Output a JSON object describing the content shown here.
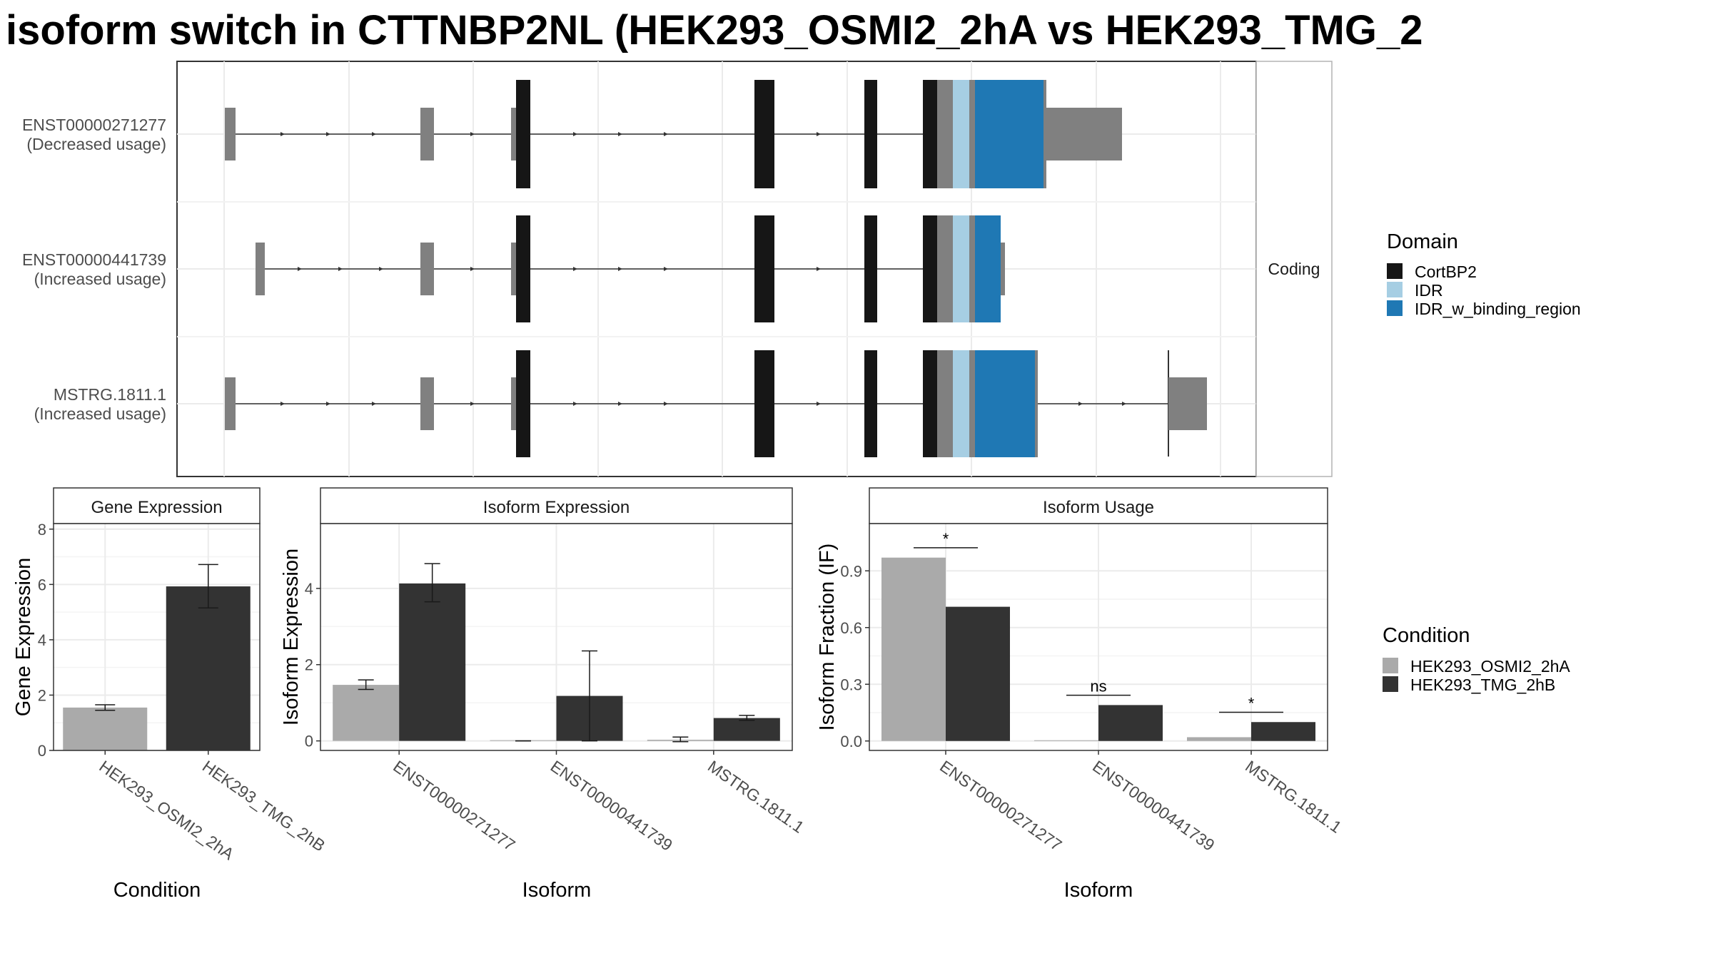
{
  "title": "isoform switch in CTTNBP2NL (HEK293_OSMI2_2hA vs HEK293_TMG_2",
  "colors": {
    "CortBP2": "#161616",
    "IDR": "#a6cee3",
    "IDR_w_binding_region": "#1f78b4",
    "noncoding": "#808080",
    "HEK293_OSMI2_2hA": "#aaaaaa",
    "HEK293_TMG_2hB": "#333333"
  },
  "structure": {
    "facet_label": "Coding",
    "transcripts": [
      {
        "id": "ENST00000271277",
        "usage": "(Decreased usage)"
      },
      {
        "id": "ENST00000441739",
        "usage": "(Increased usage)"
      },
      {
        "id": "MSTRG.1811.1",
        "usage": "(Increased usage)"
      }
    ]
  },
  "domain_legend": {
    "title": "Domain",
    "items": [
      "CortBP2",
      "IDR",
      "IDR_w_binding_region"
    ]
  },
  "condition_legend": {
    "title": "Condition",
    "items": [
      "HEK293_OSMI2_2hA",
      "HEK293_TMG_2hB"
    ]
  },
  "chart_data": [
    {
      "type": "bar",
      "title": "Gene Expression",
      "xlabel": "Condition",
      "ylabel": "Gene Expression",
      "ylim": [
        0,
        8.2
      ],
      "yticks": [
        0,
        2,
        4,
        6,
        8
      ],
      "categories": [
        "HEK293_OSMI2_2hA",
        "HEK293_TMG_2hB"
      ],
      "values": [
        1.55,
        5.93
      ],
      "errors": [
        [
          1.45,
          1.65
        ],
        [
          5.15,
          6.72
        ]
      ],
      "grid": true
    },
    {
      "type": "bar",
      "title": "Isoform Expression",
      "xlabel": "Isoform",
      "ylabel": "Isoform Expression",
      "ylim": [
        -0.25,
        5.7
      ],
      "yticks": [
        0,
        2,
        4
      ],
      "categories": [
        "ENST00000271277",
        "ENST00000441739",
        "MSTRG.1811.1"
      ],
      "series": [
        {
          "name": "HEK293_OSMI2_2hA",
          "values": [
            1.47,
            0.0,
            0.03
          ],
          "errors": [
            [
              1.35,
              1.6
            ],
            [
              0.0,
              0.0
            ],
            [
              -0.02,
              0.1
            ]
          ]
        },
        {
          "name": "HEK293_TMG_2hB",
          "values": [
            4.13,
            1.18,
            0.6
          ],
          "errors": [
            [
              3.65,
              4.65
            ],
            [
              0.0,
              2.36
            ],
            [
              0.54,
              0.67
            ]
          ]
        }
      ],
      "grid": true
    },
    {
      "type": "bar",
      "title": "Isoform Usage",
      "xlabel": "Isoform",
      "ylabel": "Isoform Fraction (IF)",
      "ylim": [
        -0.05,
        1.15
      ],
      "yticks": [
        0.0,
        0.3,
        0.6,
        0.9
      ],
      "ytick_labels": [
        "0.0",
        "0.3",
        "0.6",
        "0.9"
      ],
      "categories": [
        "ENST00000271277",
        "ENST00000441739",
        "MSTRG.1811.1"
      ],
      "series": [
        {
          "name": "HEK293_OSMI2_2hA",
          "values": [
            0.97,
            0.0,
            0.02
          ]
        },
        {
          "name": "HEK293_TMG_2hB",
          "values": [
            0.71,
            0.19,
            0.1
          ]
        }
      ],
      "significance": [
        "*",
        "ns",
        "*"
      ],
      "grid": true
    }
  ]
}
